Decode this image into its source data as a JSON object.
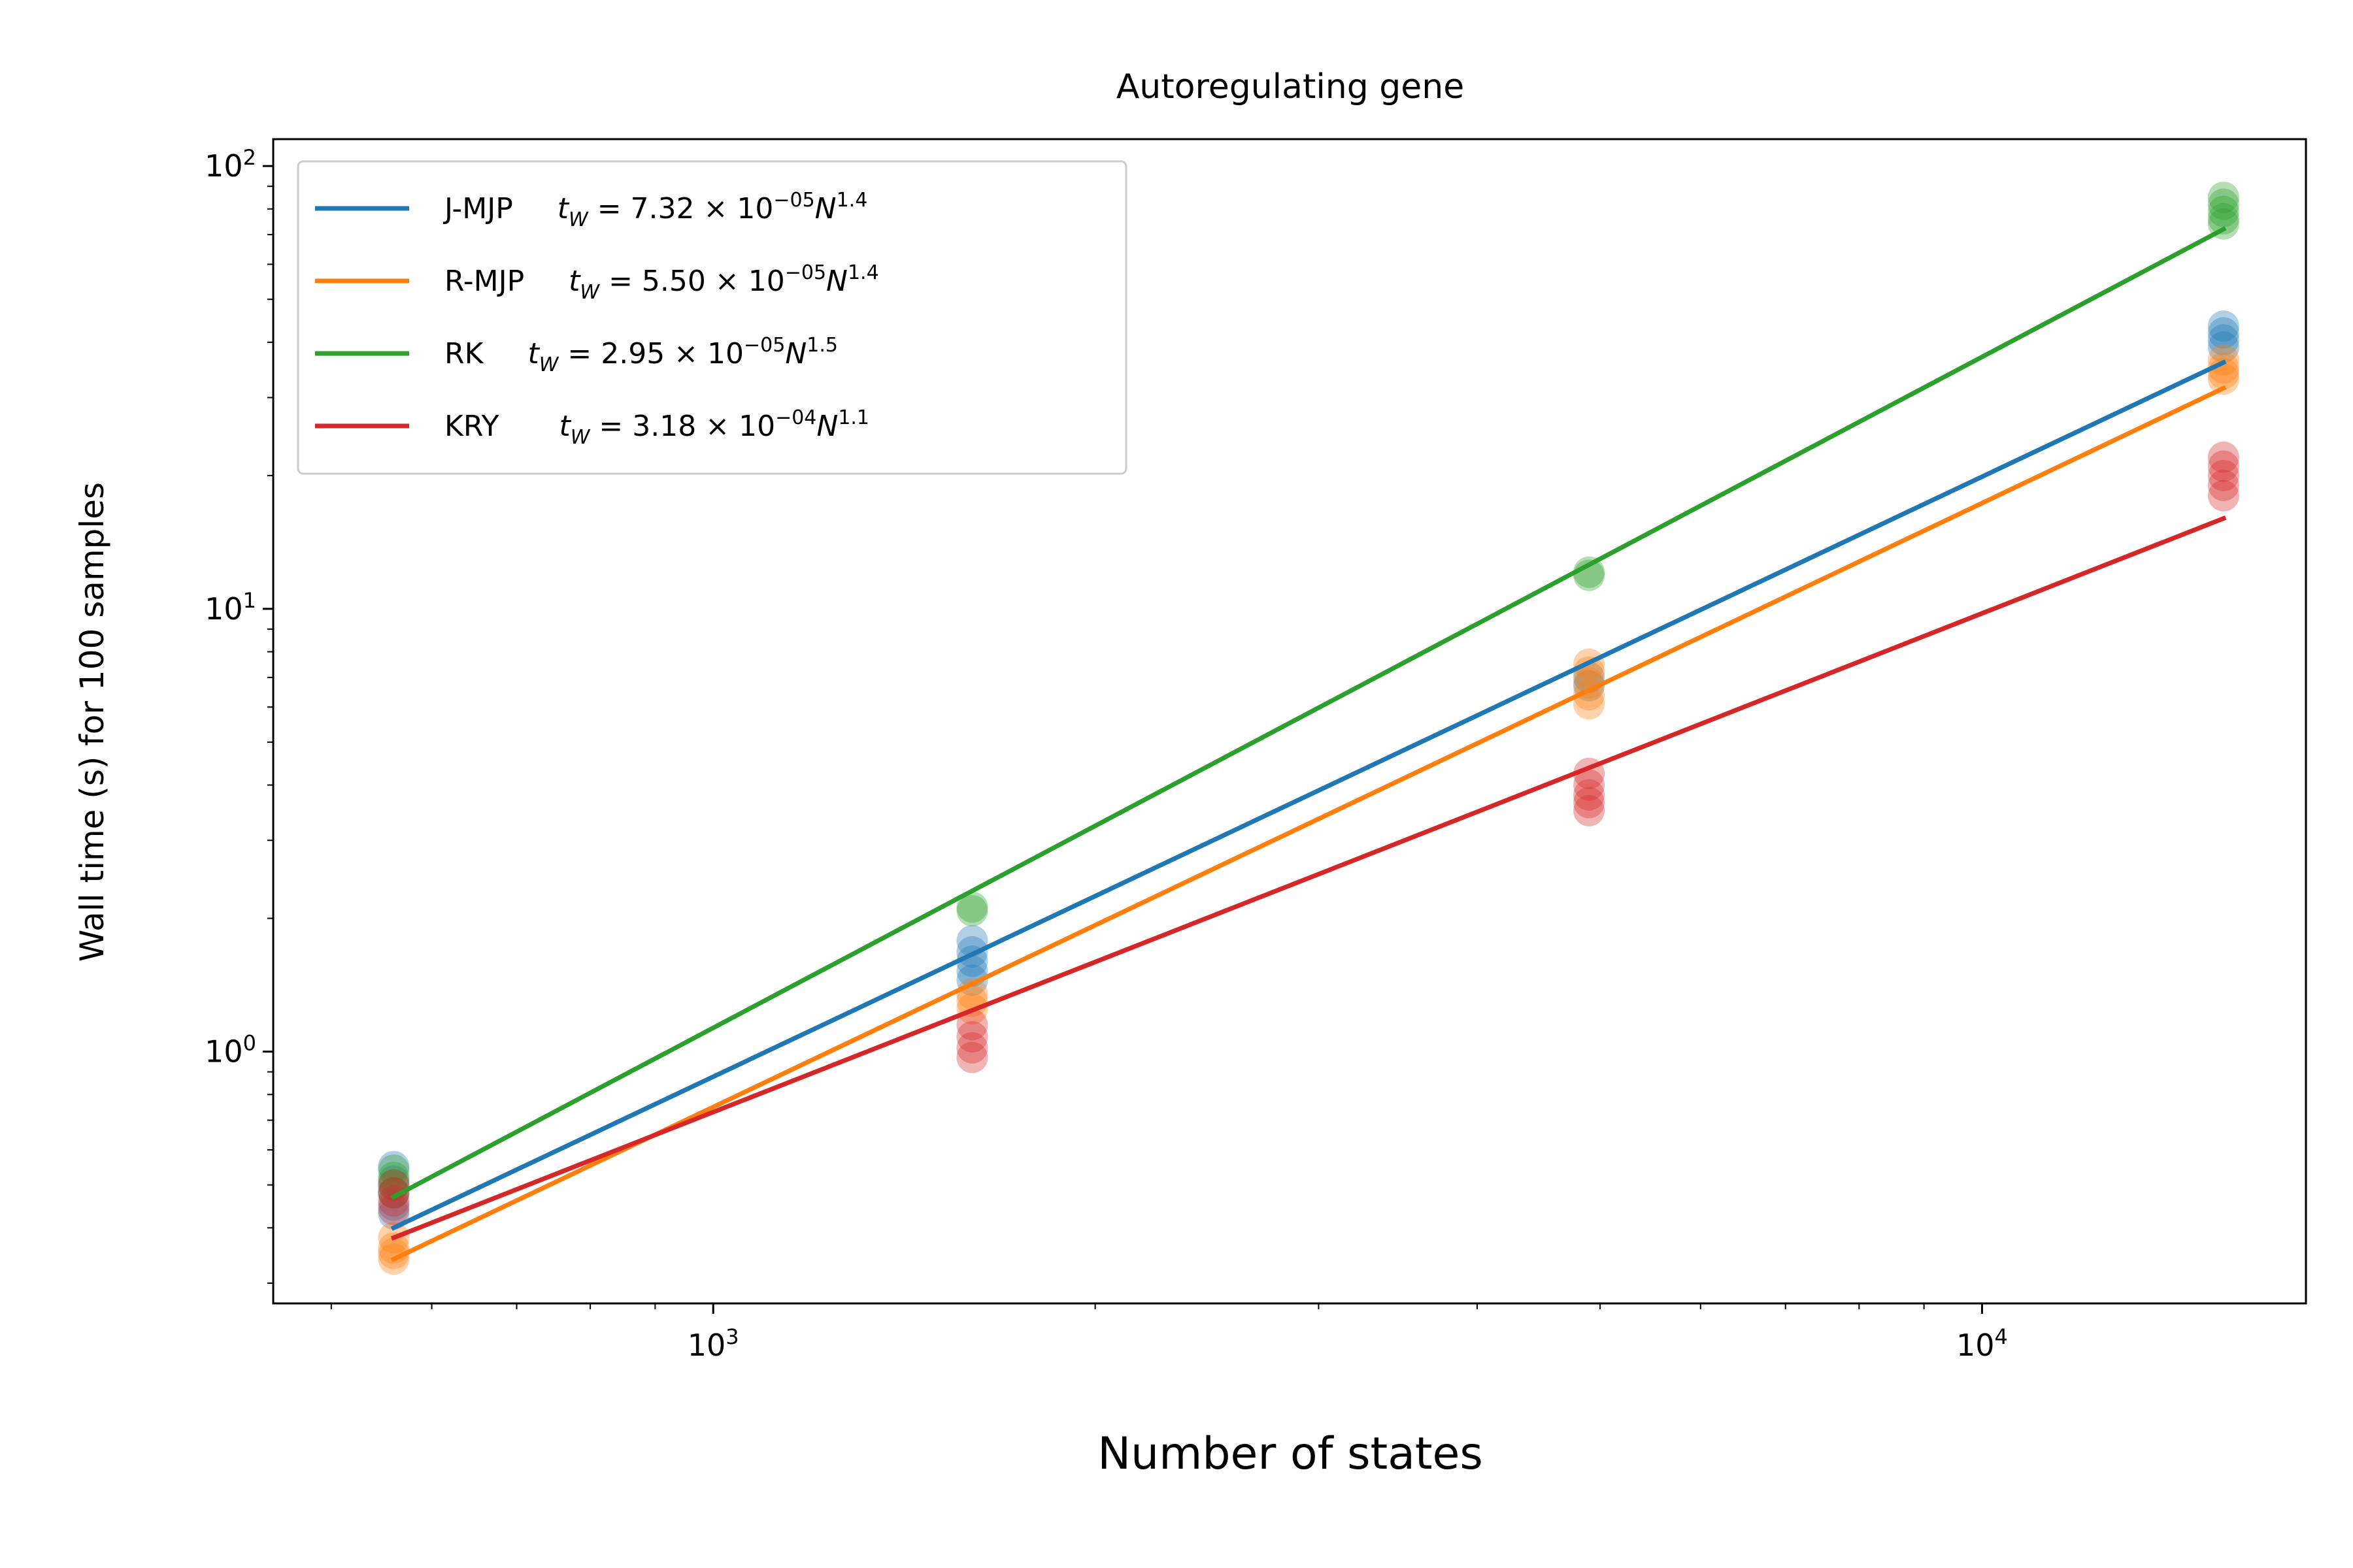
{
  "chart_data": {
    "type": "scatter",
    "title": "Autoregulating gene",
    "xlabel": "Number of states",
    "ylabel": "Wall time (s) for 100 samples",
    "xscale": "log",
    "yscale": "log",
    "xlim": [
      450,
      18000
    ],
    "ylim": [
      0.27,
      115
    ],
    "legend_position": "upper-left",
    "grid": false,
    "x_tick_labels": [
      {
        "value": 1000,
        "base": "10",
        "exp": "3"
      },
      {
        "value": 10000,
        "base": "10",
        "exp": "4"
      }
    ],
    "y_tick_labels": [
      {
        "value": 1,
        "base": "10",
        "exp": "0"
      },
      {
        "value": 10,
        "base": "10",
        "exp": "1"
      },
      {
        "value": 100,
        "base": "10",
        "exp": "2"
      }
    ],
    "series": [
      {
        "name": "J-MJP",
        "color": "#1f77b4",
        "fit_label": "t_W = 7.32 × 10^{−05} N^{1.4}",
        "fit_coef": 7.32e-05,
        "fit_exp": 1.4,
        "fit_line": [
          [
            560,
            0.4
          ],
          [
            15500,
            36.0
          ]
        ],
        "points": [
          [
            560,
            0.43
          ],
          [
            560,
            0.45
          ],
          [
            560,
            0.48
          ],
          [
            560,
            0.51
          ],
          [
            560,
            0.55
          ],
          [
            1600,
            1.45
          ],
          [
            1600,
            1.52
          ],
          [
            1600,
            1.6
          ],
          [
            1600,
            1.68
          ],
          [
            1600,
            1.78
          ],
          [
            4900,
            6.7
          ],
          [
            4900,
            7.0
          ],
          [
            15500,
            39.0
          ],
          [
            15500,
            40.5
          ],
          [
            15500,
            42.0
          ],
          [
            15500,
            43.5
          ]
        ]
      },
      {
        "name": "R-MJP",
        "color": "#ff7f0e",
        "fit_label": "t_W = 5.50 × 10^{−05} N^{1.4}",
        "fit_coef": 5.5e-05,
        "fit_exp": 1.4,
        "fit_line": [
          [
            560,
            0.34
          ],
          [
            15500,
            31.5
          ]
        ],
        "points": [
          [
            560,
            0.34
          ],
          [
            560,
            0.35
          ],
          [
            560,
            0.36
          ],
          [
            560,
            0.38
          ],
          [
            1600,
            1.25
          ],
          [
            1600,
            1.3
          ],
          [
            1600,
            1.35
          ],
          [
            4900,
            6.1
          ],
          [
            4900,
            6.4
          ],
          [
            4900,
            6.8
          ],
          [
            4900,
            7.2
          ],
          [
            4900,
            7.5
          ],
          [
            15500,
            33.0
          ],
          [
            15500,
            34.0
          ],
          [
            15500,
            35.0
          ],
          [
            15500,
            36.5
          ]
        ]
      },
      {
        "name": "RK",
        "color": "#2ca02c",
        "fit_label": "t_W = 2.95 × 10^{−05} N^{1.5}",
        "fit_coef": 2.95e-05,
        "fit_exp": 1.5,
        "fit_line": [
          [
            560,
            0.47
          ],
          [
            15500,
            72.0
          ]
        ],
        "points": [
          [
            560,
            0.48
          ],
          [
            560,
            0.5
          ],
          [
            560,
            0.52
          ],
          [
            560,
            0.54
          ],
          [
            1600,
            2.08
          ],
          [
            1600,
            2.12
          ],
          [
            4900,
            11.9
          ],
          [
            4900,
            12.1
          ],
          [
            15500,
            74.0
          ],
          [
            15500,
            76.0
          ],
          [
            15500,
            79.0
          ],
          [
            15500,
            82.0
          ],
          [
            15500,
            85.0
          ]
        ]
      },
      {
        "name": "KRY",
        "color": "#d62728",
        "fit_label": "t_W = 3.18 × 10^{−04} N^{1.1}",
        "fit_coef": 0.000318,
        "fit_exp": 1.1,
        "fit_line": [
          [
            560,
            0.38
          ],
          [
            15500,
            16.0
          ]
        ],
        "points": [
          [
            560,
            0.44
          ],
          [
            560,
            0.46
          ],
          [
            560,
            0.48
          ],
          [
            560,
            0.5
          ],
          [
            1600,
            0.97
          ],
          [
            1600,
            1.02
          ],
          [
            1600,
            1.08
          ],
          [
            1600,
            1.15
          ],
          [
            4900,
            3.5
          ],
          [
            4900,
            3.65
          ],
          [
            4900,
            3.8
          ],
          [
            4900,
            4.0
          ],
          [
            4900,
            4.25
          ],
          [
            15500,
            18.0
          ],
          [
            15500,
            19.0
          ],
          [
            15500,
            20.0
          ],
          [
            15500,
            21.0
          ],
          [
            15500,
            22.0
          ]
        ]
      }
    ]
  }
}
